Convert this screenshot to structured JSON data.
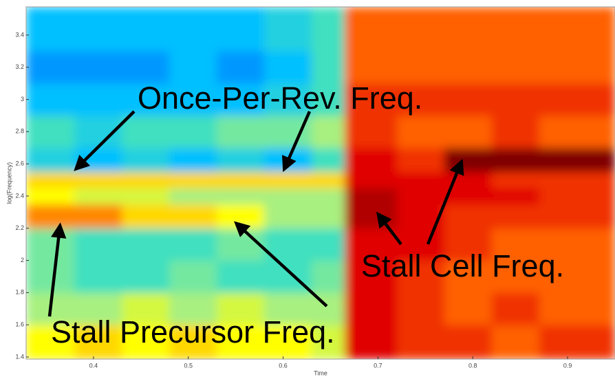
{
  "chart_data": {
    "type": "heatmap",
    "xlabel": "Time",
    "ylabel": "log(Frequency)",
    "xbins": [
      0.329,
      0.38,
      0.43,
      0.48,
      0.53,
      0.58,
      0.63,
      0.665,
      0.72,
      0.77,
      0.82,
      0.87,
      0.95
    ],
    "ybins": [
      1.387,
      1.6,
      1.8,
      2.0,
      2.2,
      2.35,
      2.45,
      2.55,
      2.7,
      2.9,
      3.1,
      3.3,
      3.575
    ],
    "z": [
      [
        6,
        6.5,
        6,
        6.5,
        6,
        6,
        5.5,
        9,
        8.5,
        8.5,
        8,
        8.5
      ],
      [
        5,
        5,
        5.5,
        5,
        5.5,
        5,
        5,
        9,
        8.5,
        8,
        8.5,
        8
      ],
      [
        4.5,
        4,
        4,
        4.5,
        4,
        4,
        4.5,
        9,
        8.5,
        8,
        8,
        8
      ],
      [
        4.5,
        4,
        4,
        4,
        4.5,
        4,
        4,
        9,
        9,
        8.5,
        8,
        8
      ],
      [
        7.5,
        7.5,
        6.5,
        6.5,
        6,
        5,
        5,
        9.5,
        9,
        8.5,
        8.5,
        8.5
      ],
      [
        6,
        5.5,
        5.5,
        5,
        5,
        5,
        5,
        9.5,
        9,
        9,
        9,
        8.5
      ],
      [
        6.5,
        6.5,
        6.5,
        6.5,
        6.5,
        6.5,
        6.5,
        9,
        9,
        9,
        8.5,
        8.5
      ],
      [
        3.5,
        3,
        3.5,
        3,
        3.5,
        3,
        4,
        9,
        8.5,
        10,
        10,
        10
      ],
      [
        4,
        3.5,
        4,
        4,
        4.5,
        4.5,
        5,
        8.5,
        8,
        8,
        8.5,
        8
      ],
      [
        3,
        3,
        3,
        3,
        3,
        3.5,
        4,
        8.5,
        8.5,
        8.5,
        8.5,
        8.5
      ],
      [
        2.5,
        2.5,
        2.5,
        3,
        2.5,
        3,
        4,
        8,
        8,
        8,
        8,
        8
      ],
      [
        3,
        3,
        3,
        3,
        3,
        3.5,
        4,
        8,
        8,
        8,
        8,
        8
      ]
    ],
    "zlim": [
      0,
      10
    ],
    "colorscale": [
      "#00008f",
      "#0030ff",
      "#0070ff",
      "#00c0ff",
      "#40e0c0",
      "#a8f080",
      "#ffff00",
      "#ffb000",
      "#ff6000",
      "#e00000",
      "#800000"
    ],
    "xlim": [
      0.329,
      0.95
    ],
    "xticks": [
      0.4,
      0.5,
      0.6,
      0.7,
      0.8,
      0.9
    ],
    "ylim": [
      1.387,
      3.575
    ],
    "yticks": [
      1.4,
      1.6,
      1.8,
      2,
      2.2,
      2.4,
      2.6,
      2.8,
      3,
      3.2,
      3.4
    ],
    "annotations": [
      "Once-Per-Rev. Freq.",
      "Stall Precursor Freq.",
      "Stall Cell Freq."
    ]
  }
}
